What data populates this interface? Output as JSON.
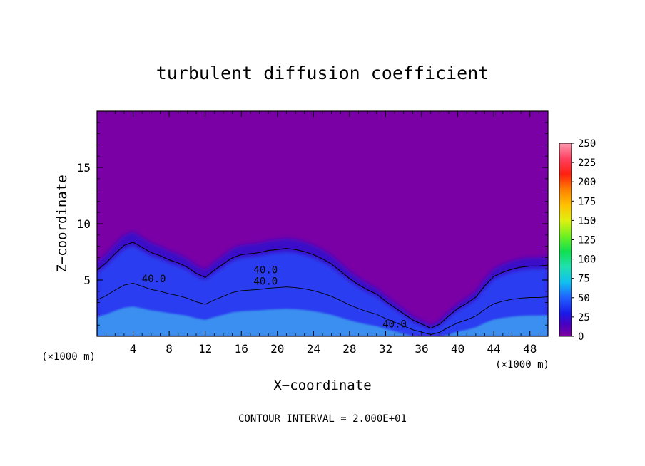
{
  "chart_data": {
    "type": "heatmap",
    "title": "turbulent diffusion coefficient",
    "xlabel": "X−coordinate",
    "ylabel": "Z−coordinate",
    "x_unit_left": "(×1000 m)",
    "x_unit_right": "(×1000 m)",
    "footer": "CONTOUR INTERVAL = 2.000E+01",
    "xlim": [
      0,
      50
    ],
    "ylim": [
      0,
      20
    ],
    "x_ticks": [
      4,
      8,
      12,
      16,
      20,
      24,
      28,
      32,
      36,
      40,
      44,
      48
    ],
    "y_ticks": [
      5,
      10,
      15
    ],
    "colorbar": {
      "min": 0,
      "max": 250,
      "ticks": [
        0,
        25,
        50,
        75,
        100,
        125,
        150,
        175,
        200,
        225,
        250
      ]
    },
    "contour_labels": [
      {
        "text": "40.0",
        "x": 6.3,
        "y": 4.8
      },
      {
        "text": "40.0",
        "x": 18.7,
        "y": 5.6
      },
      {
        "text": "40.0",
        "x": 18.7,
        "y": 4.6
      },
      {
        "text": "40.0",
        "x": 33.0,
        "y": 0.8
      }
    ],
    "ridge_profile": [
      [
        0,
        6.6
      ],
      [
        1,
        7.3
      ],
      [
        2,
        8.2
      ],
      [
        3,
        9.0
      ],
      [
        4,
        9.3
      ],
      [
        5,
        8.8
      ],
      [
        6,
        8.3
      ],
      [
        7,
        8.0
      ],
      [
        8,
        7.6
      ],
      [
        9,
        7.3
      ],
      [
        10,
        6.9
      ],
      [
        11,
        6.3
      ],
      [
        12,
        5.9
      ],
      [
        13,
        6.6
      ],
      [
        14,
        7.2
      ],
      [
        15,
        7.8
      ],
      [
        16,
        8.1
      ],
      [
        17,
        8.2
      ],
      [
        18,
        8.3
      ],
      [
        19,
        8.5
      ],
      [
        20,
        8.6
      ],
      [
        21,
        8.7
      ],
      [
        22,
        8.6
      ],
      [
        23,
        8.4
      ],
      [
        24,
        8.1
      ],
      [
        25,
        7.7
      ],
      [
        26,
        7.2
      ],
      [
        27,
        6.5
      ],
      [
        28,
        5.8
      ],
      [
        29,
        5.2
      ],
      [
        30,
        4.7
      ],
      [
        31,
        4.3
      ],
      [
        32,
        3.6
      ],
      [
        33,
        3.0
      ],
      [
        34,
        2.4
      ],
      [
        35,
        1.8
      ],
      [
        36,
        1.4
      ],
      [
        37,
        1.0
      ],
      [
        38,
        1.4
      ],
      [
        39,
        2.2
      ],
      [
        40,
        2.9
      ],
      [
        41,
        3.4
      ],
      [
        42,
        4.0
      ],
      [
        43,
        5.1
      ],
      [
        44,
        6.0
      ],
      [
        45,
        6.4
      ],
      [
        46,
        6.7
      ],
      [
        47,
        6.9
      ],
      [
        48,
        7.0
      ],
      [
        49,
        7.0
      ],
      [
        50,
        7.1
      ]
    ],
    "colors": {
      "background_field": "#7a00a6",
      "low": "#3a10c8",
      "mid": "#2a3cf0",
      "high": "#3fa4f0"
    }
  }
}
